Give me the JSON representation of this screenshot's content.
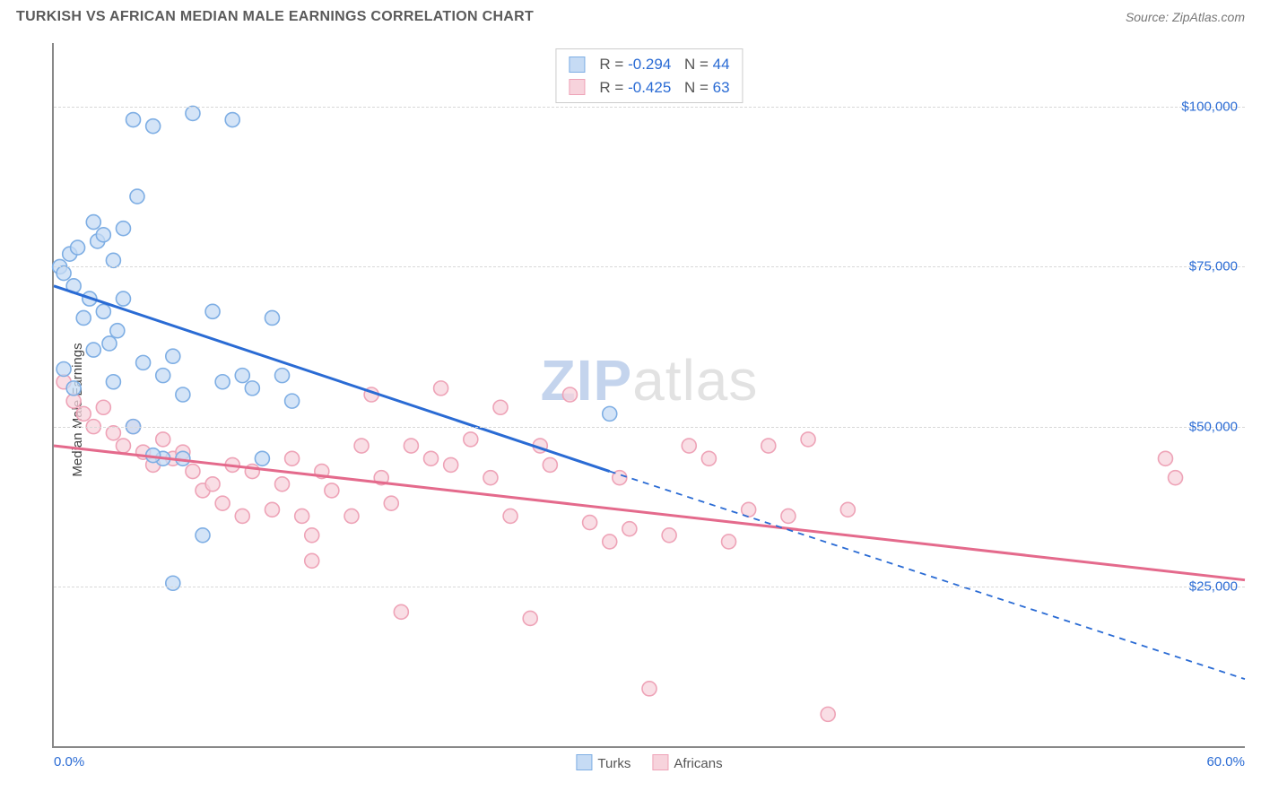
{
  "title": "TURKISH VS AFRICAN MEDIAN MALE EARNINGS CORRELATION CHART",
  "source": "Source: ZipAtlas.com",
  "watermark_a": "ZIP",
  "watermark_b": "atlas",
  "chart": {
    "type": "scatter",
    "ylabel": "Median Male Earnings",
    "xlim": [
      0,
      60
    ],
    "ylim": [
      0,
      110000
    ],
    "xtick_labels": {
      "0": "0.0%",
      "60": "60.0%"
    },
    "ytick_values": [
      25000,
      50000,
      75000,
      100000
    ],
    "ytick_labels": [
      "$25,000",
      "$50,000",
      "$75,000",
      "$100,000"
    ],
    "grid_color": "#d8d8d8",
    "axis_color": "#888888",
    "background_color": "#ffffff",
    "tick_font_color": "#2a6bd4",
    "tick_fontsize": 15,
    "label_fontsize": 15,
    "title_fontsize": 16,
    "marker_radius": 8,
    "marker_stroke_width": 1.6,
    "trend_line_width": 3,
    "trend_dash_width": 1.8,
    "series": {
      "turks": {
        "label": "Turks",
        "fill": "#c6dbf4",
        "stroke": "#7eaee4",
        "line_color": "#2a6bd4",
        "R": "-0.294",
        "N": "44",
        "trend_solid": {
          "x1": 0.0,
          "y1": 72000,
          "x2": 28,
          "y2": 43000
        },
        "trend_dash": {
          "x1": 28,
          "y1": 43000,
          "x2": 60,
          "y2": 10500
        },
        "points": [
          [
            0.3,
            75000
          ],
          [
            0.5,
            74000
          ],
          [
            0.8,
            77000
          ],
          [
            1.0,
            72000
          ],
          [
            1.2,
            78000
          ],
          [
            1.5,
            67000
          ],
          [
            1.8,
            70000
          ],
          [
            2.0,
            82000
          ],
          [
            2.2,
            79000
          ],
          [
            2.5,
            80000
          ],
          [
            2.5,
            68000
          ],
          [
            2.8,
            63000
          ],
          [
            3.0,
            76000
          ],
          [
            3.2,
            65000
          ],
          [
            3.5,
            81000
          ],
          [
            3.5,
            70000
          ],
          [
            4.0,
            98000
          ],
          [
            4.2,
            86000
          ],
          [
            4.5,
            60000
          ],
          [
            5.0,
            97000
          ],
          [
            5.5,
            58000
          ],
          [
            5.5,
            45000
          ],
          [
            6.0,
            61000
          ],
          [
            6.0,
            25500
          ],
          [
            6.5,
            55000
          ],
          [
            7.0,
            99000
          ],
          [
            7.5,
            33000
          ],
          [
            8.0,
            68000
          ],
          [
            8.5,
            57000
          ],
          [
            9.0,
            98000
          ],
          [
            9.5,
            58000
          ],
          [
            10.0,
            56000
          ],
          [
            10.5,
            45000
          ],
          [
            11.0,
            67000
          ],
          [
            11.5,
            58000
          ],
          [
            12.0,
            54000
          ],
          [
            4.0,
            50000
          ],
          [
            3.0,
            57000
          ],
          [
            2.0,
            62000
          ],
          [
            1.0,
            56000
          ],
          [
            0.5,
            59000
          ],
          [
            5.0,
            45500
          ],
          [
            6.5,
            45000
          ],
          [
            28.0,
            52000
          ]
        ]
      },
      "africans": {
        "label": "Africans",
        "fill": "#f7d3dc",
        "stroke": "#eea3b7",
        "line_color": "#e46a8c",
        "R": "-0.425",
        "N": "63",
        "trend_solid": {
          "x1": 0.0,
          "y1": 47000,
          "x2": 60,
          "y2": 26000
        },
        "points": [
          [
            0.5,
            57000
          ],
          [
            1.0,
            54000
          ],
          [
            1.5,
            52000
          ],
          [
            2.0,
            50000
          ],
          [
            2.5,
            53000
          ],
          [
            3.0,
            49000
          ],
          [
            3.5,
            47000
          ],
          [
            4.0,
            50000
          ],
          [
            4.5,
            46000
          ],
          [
            5.0,
            44000
          ],
          [
            5.5,
            48000
          ],
          [
            6.0,
            45000
          ],
          [
            6.5,
            46000
          ],
          [
            7.0,
            43000
          ],
          [
            7.5,
            40000
          ],
          [
            8.0,
            41000
          ],
          [
            8.5,
            38000
          ],
          [
            9.0,
            44000
          ],
          [
            10.0,
            43000
          ],
          [
            11.0,
            37000
          ],
          [
            11.5,
            41000
          ],
          [
            12.0,
            45000
          ],
          [
            12.5,
            36000
          ],
          [
            13.0,
            33000
          ],
          [
            13.5,
            43000
          ],
          [
            14.0,
            40000
          ],
          [
            15.0,
            36000
          ],
          [
            15.5,
            47000
          ],
          [
            16.0,
            55000
          ],
          [
            16.5,
            42000
          ],
          [
            17.0,
            38000
          ],
          [
            17.5,
            21000
          ],
          [
            18.0,
            47000
          ],
          [
            19.0,
            45000
          ],
          [
            19.5,
            56000
          ],
          [
            20.0,
            44000
          ],
          [
            21.0,
            48000
          ],
          [
            22.0,
            42000
          ],
          [
            22.5,
            53000
          ],
          [
            23.0,
            36000
          ],
          [
            24.0,
            20000
          ],
          [
            25.0,
            44000
          ],
          [
            26.0,
            55000
          ],
          [
            27.0,
            35000
          ],
          [
            28.0,
            32000
          ],
          [
            28.5,
            42000
          ],
          [
            29.0,
            34000
          ],
          [
            30.0,
            9000
          ],
          [
            31.0,
            33000
          ],
          [
            32.0,
            47000
          ],
          [
            33.0,
            45000
          ],
          [
            34.0,
            32000
          ],
          [
            35.0,
            37000
          ],
          [
            36.0,
            47000
          ],
          [
            37.0,
            36000
          ],
          [
            38.0,
            48000
          ],
          [
            39.0,
            5000
          ],
          [
            40.0,
            37000
          ],
          [
            56.0,
            45000
          ],
          [
            56.5,
            42000
          ],
          [
            24.5,
            47000
          ],
          [
            13.0,
            29000
          ],
          [
            9.5,
            36000
          ]
        ]
      }
    }
  }
}
